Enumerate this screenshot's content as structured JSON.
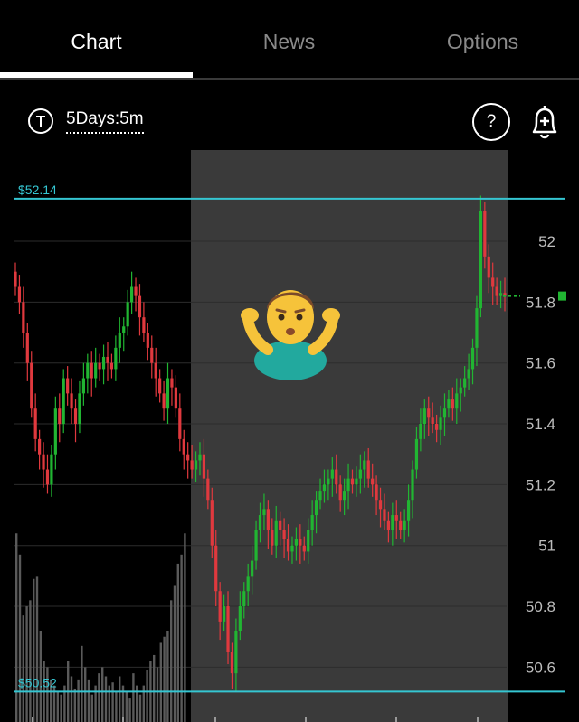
{
  "tabs": [
    {
      "label": "Chart",
      "active": true
    },
    {
      "label": "News",
      "active": false
    },
    {
      "label": "Options",
      "active": false
    }
  ],
  "toolbar": {
    "period_label": "5Days:5m",
    "help_label": "?",
    "left_icon": "trend-line-icon",
    "right_icon": "add-alert-bell-icon"
  },
  "colors": {
    "up": "#21b532",
    "down": "#e0393e",
    "level_line": "#35c6d2",
    "shaded_region": "#3a3a3a",
    "volume": "#5a5a5a",
    "last_price_marker": "#21b532"
  },
  "chart_data": {
    "type": "candlestick",
    "y_ticks": [
      "52",
      "51.8",
      "51.6",
      "51.4",
      "51.2",
      "51",
      "50.8",
      "50.6"
    ],
    "y_tick_values": [
      52,
      51.8,
      51.6,
      51.4,
      51.2,
      51,
      50.8,
      50.6
    ],
    "ylim": [
      50.42,
      52.3
    ],
    "high_line": {
      "label": "$52.14",
      "value": 52.14
    },
    "low_line": {
      "label": "$50.52",
      "value": 50.52
    },
    "last_price": 51.82,
    "closes": [
      51.85,
      51.8,
      51.7,
      51.6,
      51.45,
      51.35,
      51.3,
      51.25,
      51.2,
      51.3,
      51.45,
      51.4,
      51.55,
      51.5,
      51.45,
      51.4,
      51.5,
      51.55,
      51.6,
      51.55,
      51.6,
      51.58,
      51.62,
      51.6,
      51.58,
      51.65,
      51.7,
      51.72,
      51.8,
      51.85,
      51.82,
      51.75,
      51.7,
      51.65,
      51.6,
      51.55,
      51.5,
      51.45,
      51.55,
      51.52,
      51.45,
      51.35,
      51.3,
      51.28,
      51.25,
      51.28,
      51.3,
      51.22,
      51.15,
      51.0,
      50.85,
      50.75,
      50.8,
      50.65,
      50.58,
      50.72,
      50.8,
      50.85,
      50.9,
      50.95,
      51.05,
      51.1,
      51.12,
      51.05,
      51.0,
      51.08,
      51.05,
      51.02,
      50.98,
      51.0,
      51.02,
      51.0,
      50.98,
      51.05,
      51.1,
      51.15,
      51.18,
      51.2,
      51.22,
      51.25,
      51.2,
      51.15,
      51.18,
      51.22,
      51.2,
      51.22,
      51.25,
      51.28,
      51.22,
      51.2,
      51.15,
      51.12,
      51.08,
      51.05,
      51.1,
      51.08,
      51.05,
      51.08,
      51.15,
      51.25,
      51.35,
      51.4,
      51.45,
      51.42,
      51.4,
      51.38,
      51.42,
      51.45,
      51.48,
      51.45,
      51.5,
      51.52,
      51.55,
      51.58,
      51.65,
      51.78,
      52.1,
      51.95,
      51.88,
      51.85,
      51.82,
      51.83,
      51.82
    ],
    "volumes": [
      0.62,
      0.55,
      0.35,
      0.38,
      0.4,
      0.47,
      0.48,
      0.3,
      0.2,
      0.18,
      0.14,
      0.12,
      0.1,
      0.09,
      0.12,
      0.2,
      0.15,
      0.11,
      0.14,
      0.25,
      0.18,
      0.14,
      0.09,
      0.12,
      0.16,
      0.18,
      0.15,
      0.12,
      0.13,
      0.1,
      0.15,
      0.12,
      0.1,
      0.08,
      0.16,
      0.12,
      0.09,
      0.12,
      0.17,
      0.2,
      0.22,
      0.18,
      0.26,
      0.28,
      0.3,
      0.4,
      0.45,
      0.52,
      0.55,
      0.62
    ]
  }
}
